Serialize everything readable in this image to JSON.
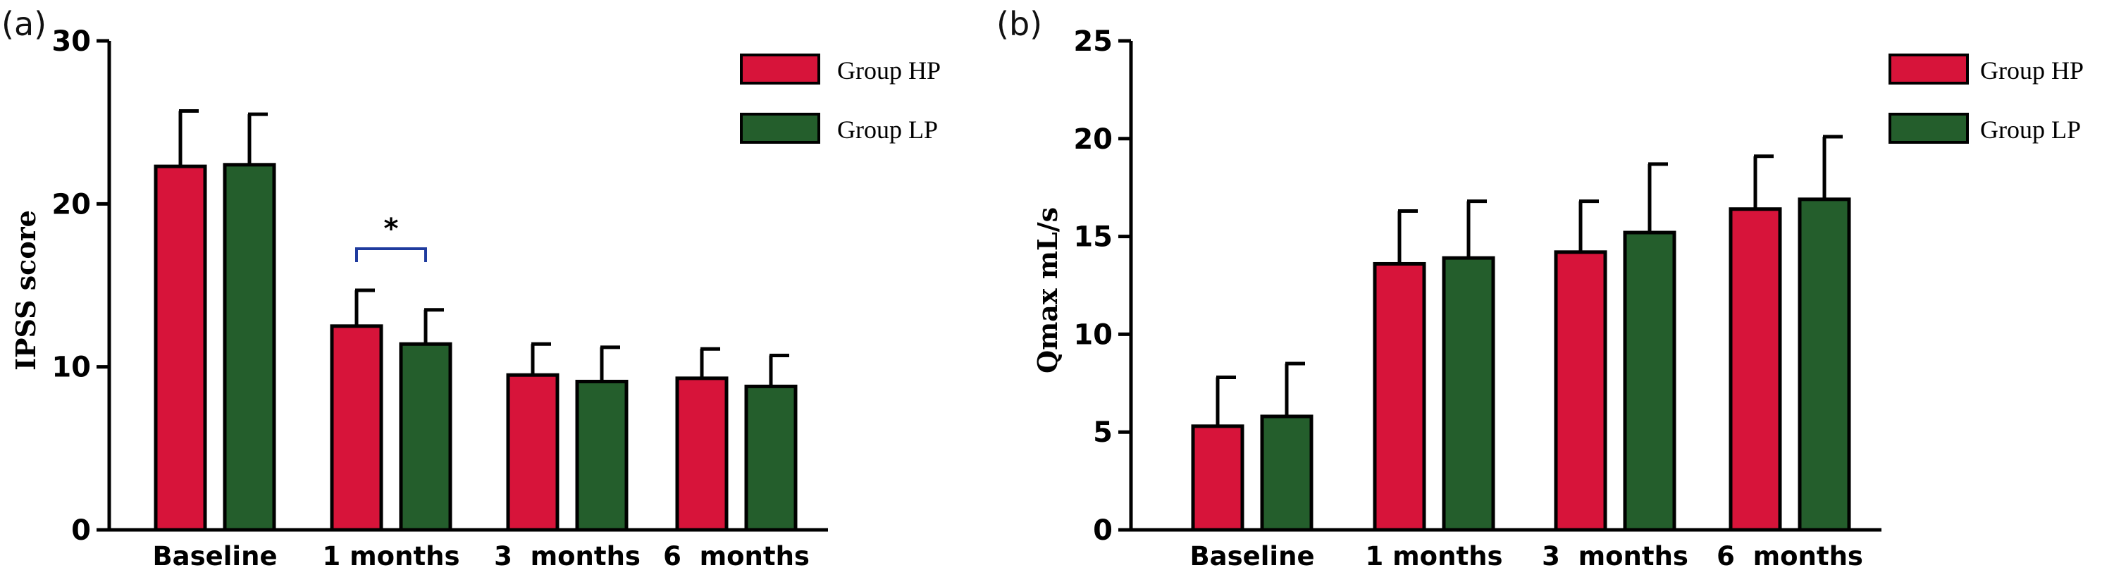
{
  "chart_data": [
    {
      "type": "bar",
      "panel_label": "(a)",
      "categories": [
        "Baseline",
        "1 months",
        "3  months",
        "6  months"
      ],
      "series": [
        {
          "name": "Group HP",
          "color": "#d7143a",
          "values": [
            22.3,
            12.5,
            9.5,
            9.3
          ],
          "errors": [
            3.4,
            2.2,
            1.9,
            1.8
          ]
        },
        {
          "name": "Group LP",
          "color": "#245e2c",
          "values": [
            22.4,
            11.4,
            9.1,
            8.8
          ],
          "errors": [
            3.1,
            2.1,
            2.1,
            1.9
          ]
        }
      ],
      "ylabel": "IPSS score",
      "xlabel": "",
      "ylim": [
        0,
        30
      ],
      "yticks": [
        0,
        10,
        20,
        30
      ],
      "legend_position": "top-right",
      "annotations": [
        {
          "text": "*",
          "between": [
            "Group HP",
            "Group LP"
          ],
          "category": "1 months"
        }
      ]
    },
    {
      "type": "bar",
      "panel_label": "(b)",
      "categories": [
        "Baseline",
        "1 months",
        "3  months",
        "6  months"
      ],
      "series": [
        {
          "name": "Group HP",
          "color": "#d7143a",
          "values": [
            5.3,
            13.6,
            14.2,
            16.4
          ],
          "errors": [
            2.5,
            2.7,
            2.6,
            2.7
          ]
        },
        {
          "name": "Group LP",
          "color": "#245e2c",
          "values": [
            5.8,
            13.9,
            15.2,
            16.9
          ],
          "errors": [
            2.7,
            2.9,
            3.5,
            3.2
          ]
        }
      ],
      "ylabel": "Qmax mL/s",
      "xlabel": "",
      "ylim": [
        0,
        25
      ],
      "yticks": [
        0,
        5,
        10,
        15,
        20,
        25
      ],
      "legend_position": "top-right",
      "annotations": []
    }
  ]
}
